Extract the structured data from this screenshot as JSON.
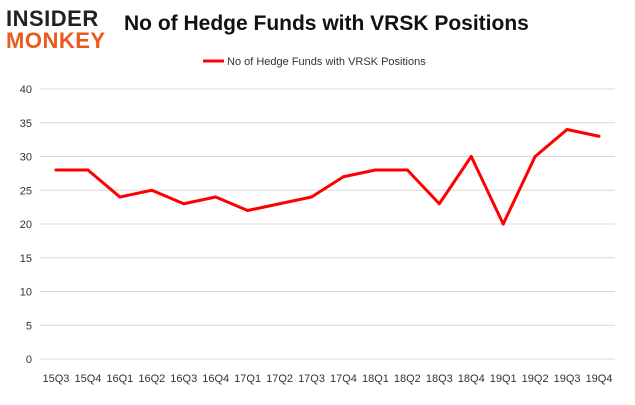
{
  "logo": {
    "line1": "INSIDER",
    "line2": "MONKEY"
  },
  "chart_data": {
    "type": "line",
    "title": "No of Hedge Funds with VRSK Positions",
    "xlabel": "",
    "ylabel": "",
    "categories": [
      "15Q3",
      "15Q4",
      "16Q1",
      "16Q2",
      "16Q3",
      "16Q4",
      "17Q1",
      "17Q2",
      "17Q3",
      "17Q4",
      "18Q1",
      "18Q2",
      "18Q3",
      "18Q4",
      "19Q1",
      "19Q2",
      "19Q3",
      "19Q4"
    ],
    "series": [
      {
        "name": "No of Hedge Funds with VRSK Positions",
        "values": [
          28,
          28,
          24,
          25,
          23,
          24,
          22,
          23,
          24,
          27,
          28,
          28,
          23,
          30,
          20,
          30,
          34,
          33
        ],
        "color": "#ff0000"
      }
    ],
    "ylim": [
      0,
      40
    ],
    "yticks": [
      0,
      5,
      10,
      15,
      20,
      25,
      30,
      35,
      40
    ],
    "grid": true,
    "legend": "top-center"
  }
}
